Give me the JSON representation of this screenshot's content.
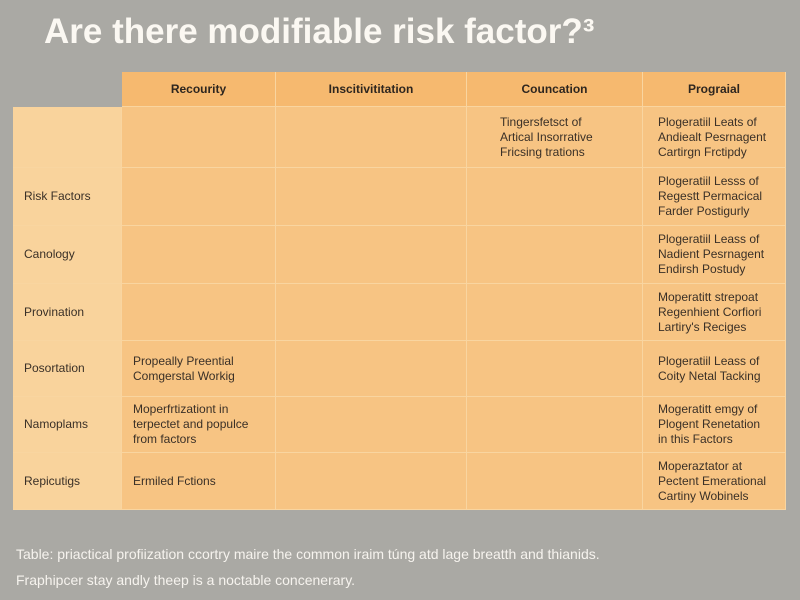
{
  "title": "Are there modifiable risk factor?³",
  "table": {
    "header": [
      null,
      "Recourity",
      "Inscitivititation",
      "Councation",
      "Prograial"
    ],
    "rows": [
      [
        null,
        null,
        null,
        [
          "Tingersfetsct of",
          "Artical Insorrative",
          "Fricsing trations"
        ],
        [
          "Plogeratiil Leats of",
          "Andiealt Pesrnagent",
          "Cartirgn Frctipdy"
        ]
      ],
      [
        "Risk Factors",
        null,
        null,
        null,
        [
          "Plogeratiil Lesss of",
          "Regestt Permacical",
          "Farder Postigurly"
        ]
      ],
      [
        "Canology",
        null,
        null,
        null,
        [
          "Plogeratiil Leass of",
          "Nadient Pesrnagent",
          "Endirsh Postudy"
        ]
      ],
      [
        "Provination",
        null,
        null,
        null,
        [
          "Moperatitt strepoat",
          "Regenhient Corfiori",
          "Lartiry's Reciges"
        ]
      ],
      [
        "Posortation",
        [
          "Propeally Preential",
          "Comgerstal Workig"
        ],
        null,
        null,
        [
          "Plogeratiil Leass of",
          "Coity Netal Tacking"
        ]
      ],
      [
        "Namoplams",
        [
          "Moperfrtizationt in",
          "terpectet and populce",
          "from factors"
        ],
        null,
        null,
        [
          "Mogeratitt emgy of",
          "Plogent Renetation",
          "in this Factors"
        ]
      ],
      [
        "Repicutigs",
        [
          "Ermiled Fctions"
        ],
        null,
        null,
        [
          "Moperaztator at",
          "Pectent Emerational",
          "Cartiny Wobinels"
        ]
      ]
    ]
  },
  "caption": [
    "Table: priactical profiization ccortry maire the common iraim túng atd lage breatth and thianids.",
    "Fraphipcer stay andly theep is a noctable concenerary."
  ]
}
